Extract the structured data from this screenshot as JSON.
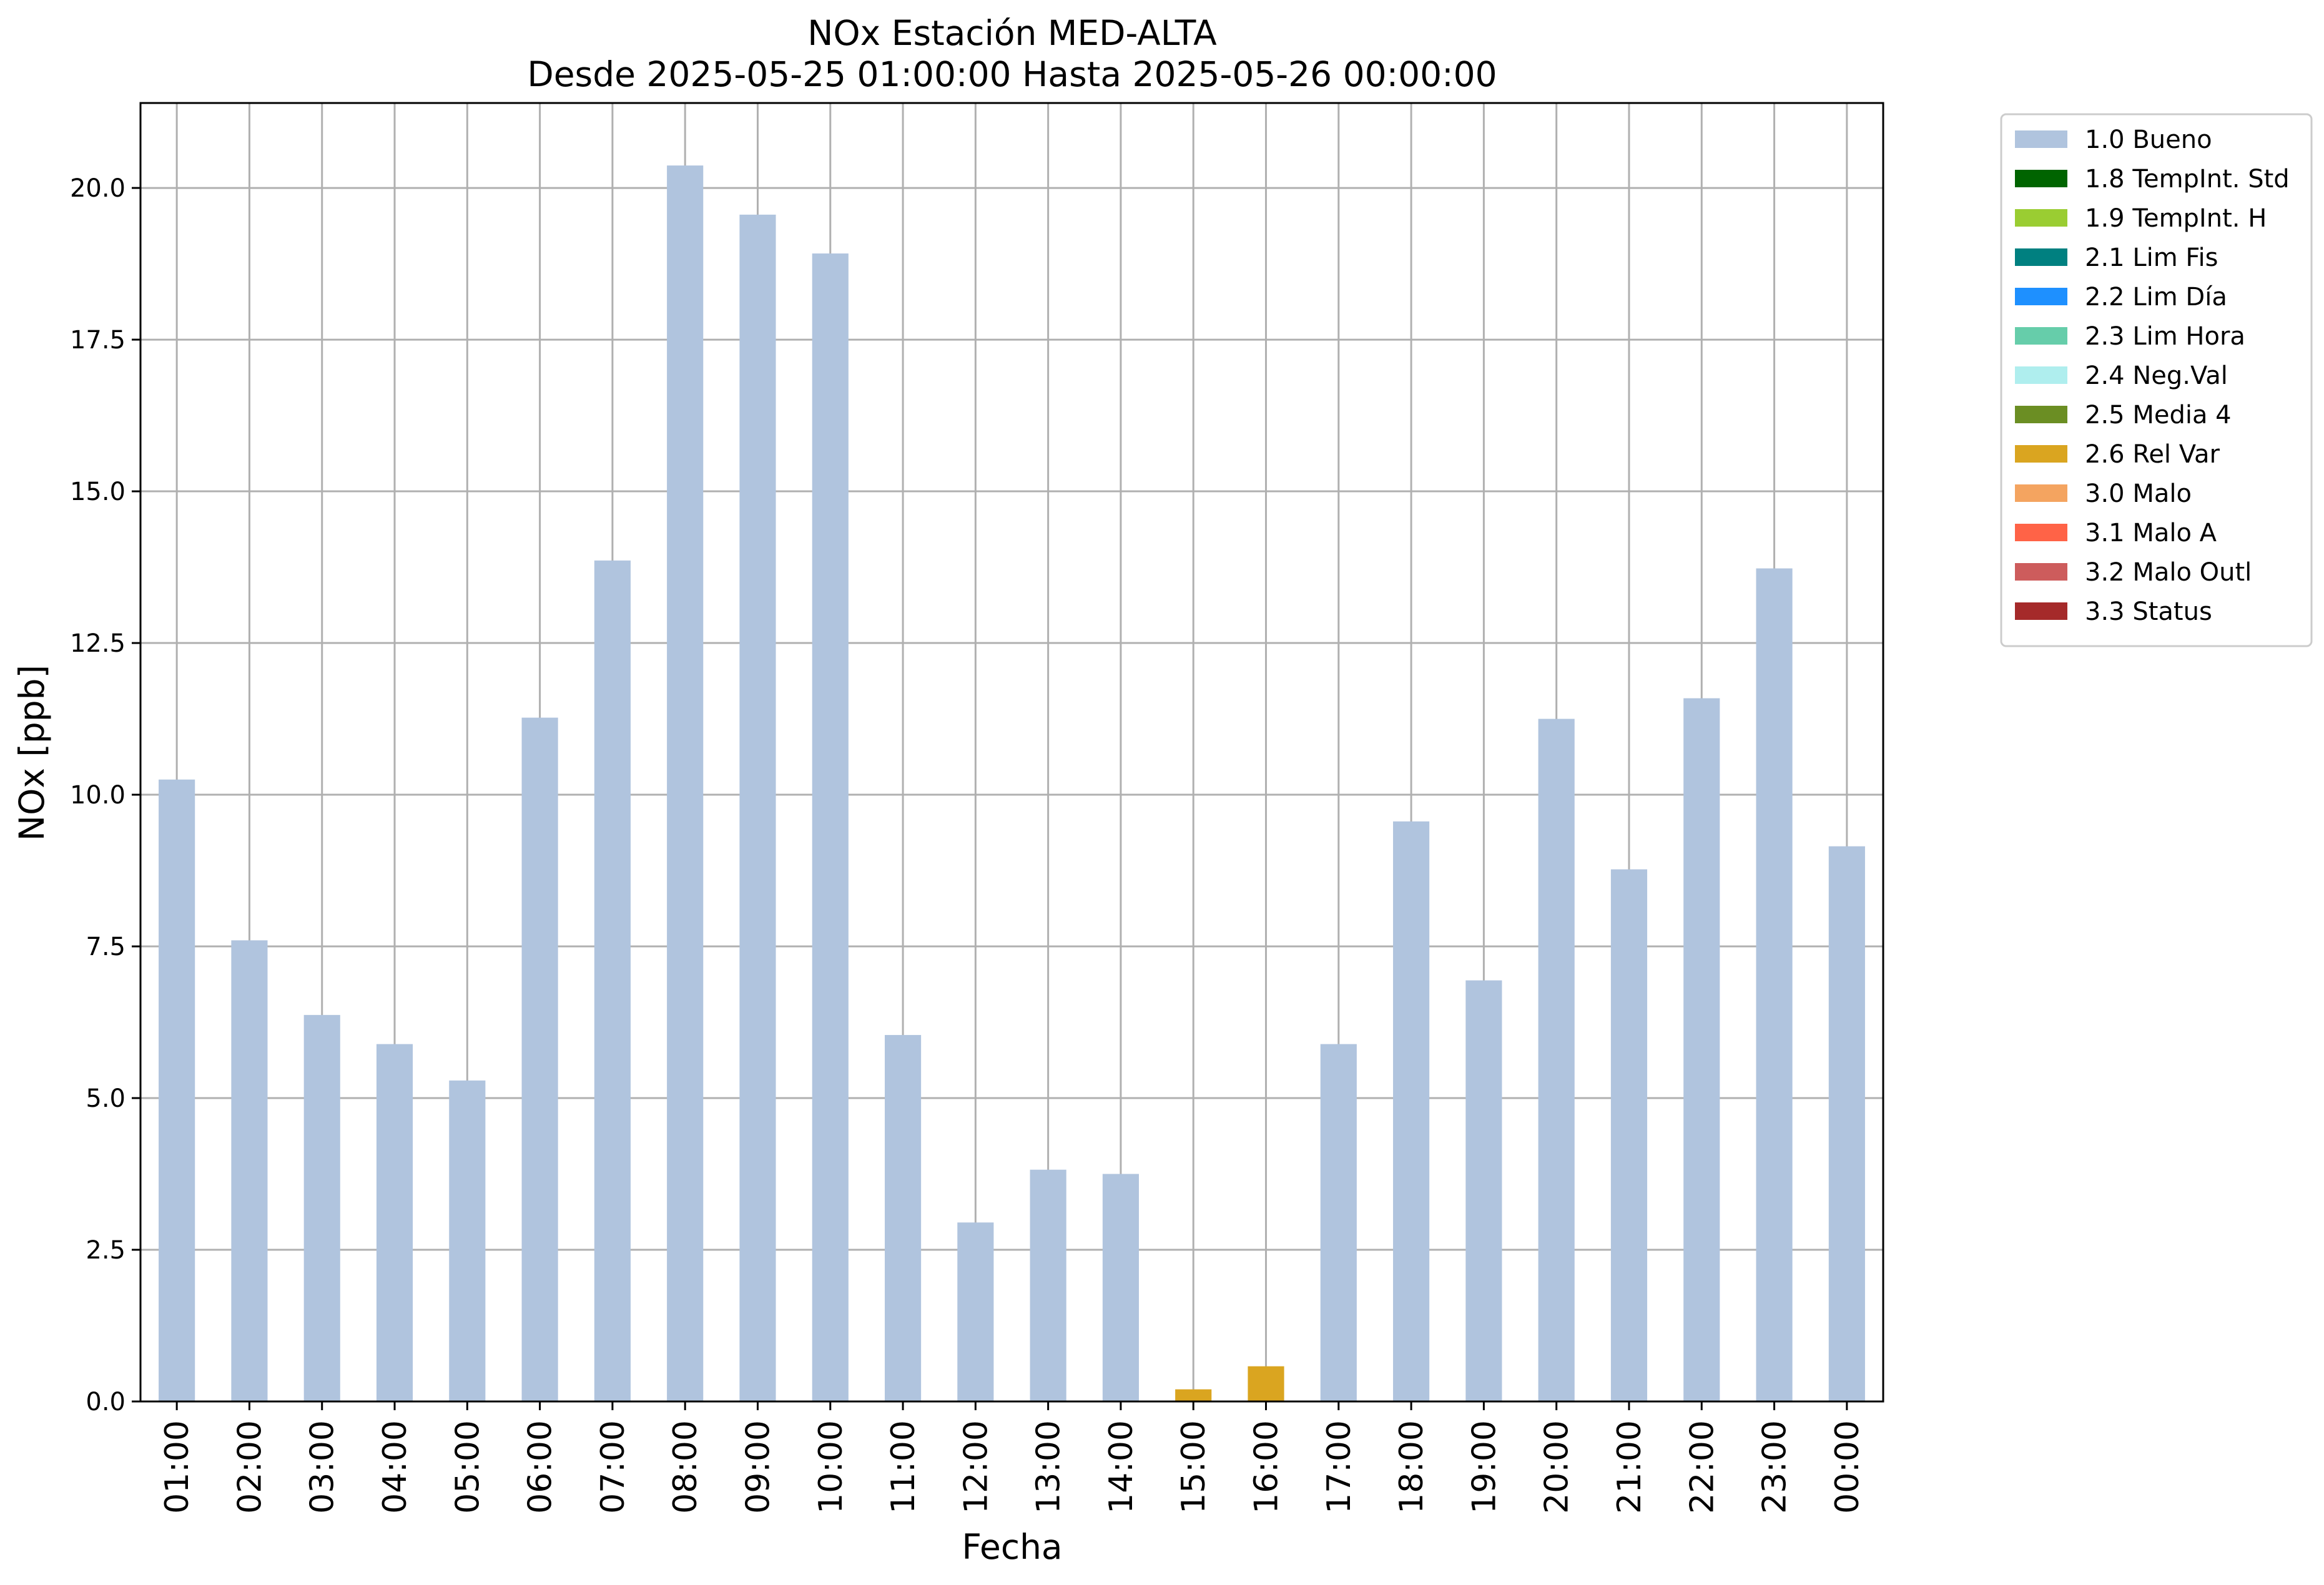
{
  "chart_data": {
    "type": "bar",
    "title": "NOx Estación MED-ALTA",
    "subtitle": "Desde 2025-05-25 01:00:00 Hasta 2025-05-26 00:00:00",
    "xlabel": "Fecha",
    "ylabel": "NOx [ppb]",
    "ylim": [
      0,
      21.4
    ],
    "yticks": [
      "0.0",
      "2.5",
      "5.0",
      "7.5",
      "10.0",
      "12.5",
      "15.0",
      "17.5",
      "20.0"
    ],
    "grid": true,
    "stacked": true,
    "legend_position": "outside-top-right",
    "categories": [
      "01:00",
      "02:00",
      "03:00",
      "04:00",
      "05:00",
      "06:00",
      "07:00",
      "08:00",
      "09:00",
      "10:00",
      "11:00",
      "12:00",
      "13:00",
      "14:00",
      "15:00",
      "16:00",
      "17:00",
      "18:00",
      "19:00",
      "20:00",
      "21:00",
      "22:00",
      "23:00",
      "00:00"
    ],
    "series": [
      {
        "name": "1.0 Bueno",
        "color": "#b0c4de",
        "values": [
          10.25,
          7.6,
          6.37,
          5.89,
          5.29,
          11.27,
          13.86,
          20.37,
          19.56,
          18.92,
          6.04,
          2.95,
          3.82,
          3.75,
          0,
          0,
          5.89,
          9.56,
          6.94,
          11.25,
          8.77,
          11.59,
          13.73,
          9.15
        ]
      },
      {
        "name": "1.8 TempInt. Std",
        "color": "#006400",
        "values": [
          0,
          0,
          0,
          0,
          0,
          0,
          0,
          0,
          0,
          0,
          0,
          0,
          0,
          0,
          0,
          0,
          0,
          0,
          0,
          0,
          0,
          0,
          0,
          0
        ]
      },
      {
        "name": "1.9 TempInt. H",
        "color": "#9acd32",
        "values": [
          0,
          0,
          0,
          0,
          0,
          0,
          0,
          0,
          0,
          0,
          0,
          0,
          0,
          0,
          0,
          0,
          0,
          0,
          0,
          0,
          0,
          0,
          0,
          0
        ]
      },
      {
        "name": "2.1 Lim Fis",
        "color": "#008080",
        "values": [
          0,
          0,
          0,
          0,
          0,
          0,
          0,
          0,
          0,
          0,
          0,
          0,
          0,
          0,
          0,
          0,
          0,
          0,
          0,
          0,
          0,
          0,
          0,
          0
        ]
      },
      {
        "name": "2.2 Lim Día",
        "color": "#1e90ff",
        "values": [
          0,
          0,
          0,
          0,
          0,
          0,
          0,
          0,
          0,
          0,
          0,
          0,
          0,
          0,
          0,
          0,
          0,
          0,
          0,
          0,
          0,
          0,
          0,
          0
        ]
      },
      {
        "name": "2.3 Lim Hora",
        "color": "#66cdaa",
        "values": [
          0,
          0,
          0,
          0,
          0,
          0,
          0,
          0,
          0,
          0,
          0,
          0,
          0,
          0,
          0,
          0,
          0,
          0,
          0,
          0,
          0,
          0,
          0,
          0
        ]
      },
      {
        "name": "2.4 Neg.Val",
        "color": "#afeeee",
        "values": [
          0,
          0,
          0,
          0,
          0,
          0,
          0,
          0,
          0,
          0,
          0,
          0,
          0,
          0,
          0,
          0,
          0,
          0,
          0,
          0,
          0,
          0,
          0,
          0
        ]
      },
      {
        "name": "2.5 Media 4",
        "color": "#6b8e23",
        "values": [
          0,
          0,
          0,
          0,
          0,
          0,
          0,
          0,
          0,
          0,
          0,
          0,
          0,
          0,
          0,
          0,
          0,
          0,
          0,
          0,
          0,
          0,
          0,
          0
        ]
      },
      {
        "name": "2.6 Rel Var",
        "color": "#daa520",
        "values": [
          0,
          0,
          0,
          0,
          0,
          0,
          0,
          0,
          0,
          0,
          0,
          0,
          0,
          0,
          0.2,
          0.58,
          0,
          0,
          0,
          0,
          0,
          0,
          0,
          0
        ]
      },
      {
        "name": "3.0 Malo",
        "color": "#f4a460",
        "values": [
          0,
          0,
          0,
          0,
          0,
          0,
          0,
          0,
          0,
          0,
          0,
          0,
          0,
          0,
          0,
          0,
          0,
          0,
          0,
          0,
          0,
          0,
          0,
          0
        ]
      },
      {
        "name": "3.1 Malo A",
        "color": "#ff6347",
        "values": [
          0,
          0,
          0,
          0,
          0,
          0,
          0,
          0,
          0,
          0,
          0,
          0,
          0,
          0,
          0,
          0,
          0,
          0,
          0,
          0,
          0,
          0,
          0,
          0
        ]
      },
      {
        "name": "3.2 Malo Outl",
        "color": "#cd5c5c",
        "values": [
          0,
          0,
          0,
          0,
          0,
          0,
          0,
          0,
          0,
          0,
          0,
          0,
          0,
          0,
          0,
          0,
          0,
          0,
          0,
          0,
          0,
          0,
          0,
          0
        ]
      },
      {
        "name": "3.3 Status",
        "color": "#a52a2a",
        "values": [
          0,
          0,
          0,
          0,
          0,
          0,
          0,
          0,
          0,
          0,
          0,
          0,
          0,
          0,
          0,
          0,
          0,
          0,
          0,
          0,
          0,
          0,
          0,
          0
        ]
      }
    ]
  }
}
